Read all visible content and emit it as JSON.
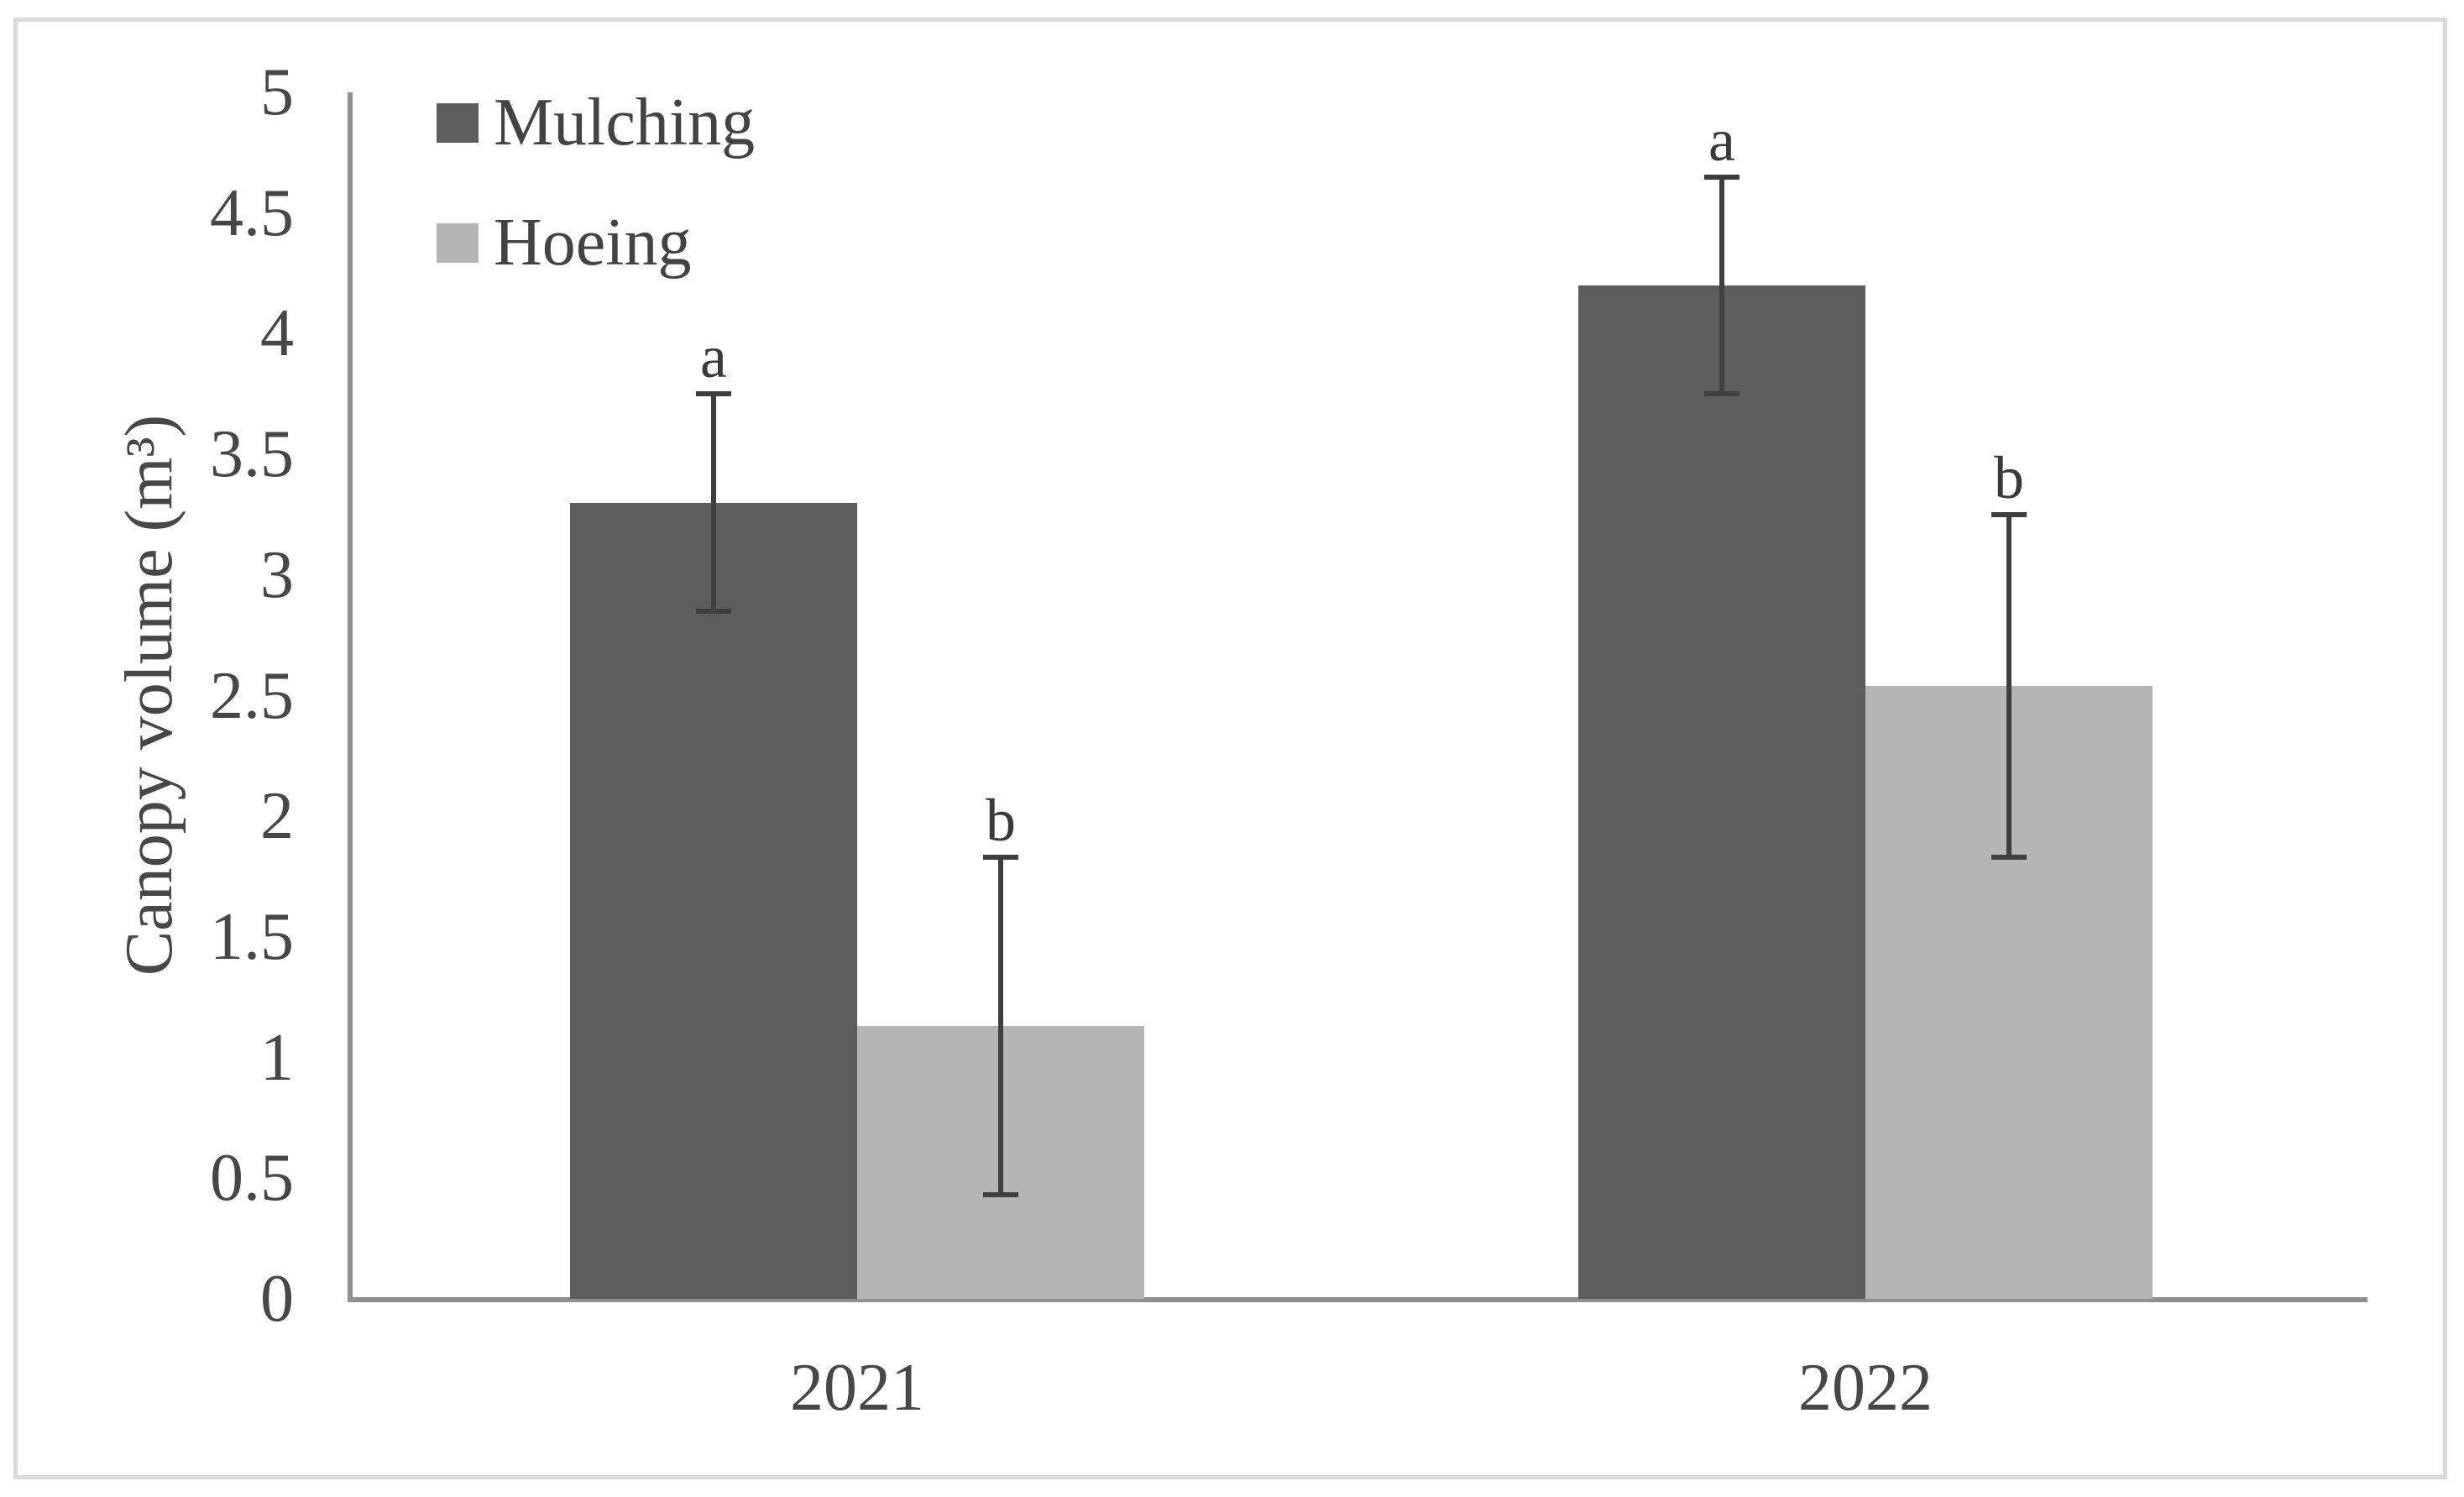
{
  "figure": {
    "background_color": "#ffffff",
    "border_color": "#dadada"
  },
  "chart_data": {
    "type": "bar",
    "title": "",
    "categories": [
      "2021",
      "2022"
    ],
    "series": [
      {
        "name": "Mulching",
        "color": "#5d5d5d",
        "values": [
          3.3,
          4.2
        ],
        "error_low": [
          2.85,
          3.75
        ],
        "error_high": [
          3.75,
          4.65
        ],
        "sig_letters": [
          "a",
          "a"
        ]
      },
      {
        "name": "Hoeing",
        "color": "#b5b5b5",
        "values": [
          1.13,
          2.54
        ],
        "error_low": [
          0.43,
          1.83
        ],
        "error_high": [
          1.83,
          3.25
        ],
        "sig_letters": [
          "b",
          "b"
        ]
      }
    ],
    "xlabel": "",
    "ylabel": "Canopy volume (m³)",
    "ylim": [
      0,
      5
    ],
    "ytick_step": 0.5,
    "yticks": [
      "0",
      "0.5",
      "1",
      "1.5",
      "2",
      "2.5",
      "3",
      "3.5",
      "4",
      "4.5",
      "5"
    ],
    "grid": false,
    "legend_position": "top-left",
    "axis_color": "#8f8f8f",
    "error_bar_color": "#3f3f3f",
    "text_color": "#474747"
  }
}
